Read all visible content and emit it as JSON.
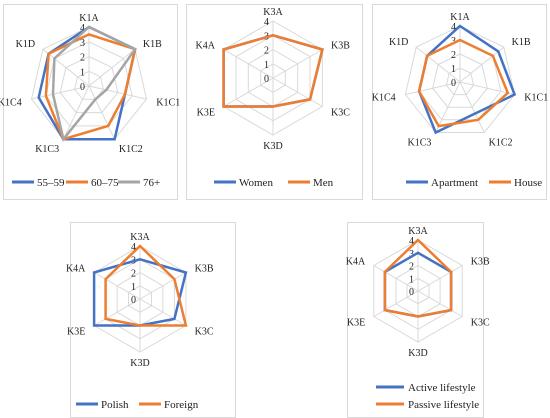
{
  "colors": {
    "blue": "#4472c4",
    "orange": "#ed7d31",
    "gray": "#a5a5a5",
    "grid": "#d9d9d9",
    "text": "#222222"
  },
  "chart_data": [
    {
      "type": "radar",
      "axes": [
        "K1A",
        "K1B",
        "K1C1",
        "K1C2",
        "K1C3",
        "K1C4",
        "K1D"
      ],
      "ticks": [
        "0",
        "1",
        "2",
        "3",
        "4"
      ],
      "rmax": 4,
      "series": [
        {
          "name": "55–59",
          "color": "blue",
          "values": [
            4,
            4,
            2.5,
            4,
            4,
            3.5,
            3.5
          ]
        },
        {
          "name": "60–75",
          "color": "orange",
          "values": [
            3.5,
            4,
            2.5,
            3,
            4,
            3,
            3.5
          ]
        },
        {
          "name": "76+",
          "color": "gray",
          "values": [
            4,
            4,
            1.2,
            1,
            4,
            2.5,
            3
          ]
        }
      ],
      "legend": "bottom"
    },
    {
      "type": "radar",
      "axes": [
        "K3A",
        "K3B",
        "K3C",
        "K3D",
        "K3E",
        "K4A"
      ],
      "ticks": [
        "0",
        "1",
        "2",
        "3",
        "4"
      ],
      "rmax": 4,
      "series": [
        {
          "name": "Women",
          "color": "blue",
          "values": [
            3,
            4,
            3,
            2,
            4,
            4
          ]
        },
        {
          "name": "Men",
          "color": "orange",
          "values": [
            3,
            4,
            3,
            2,
            4,
            4
          ]
        }
      ],
      "legend": "bottom"
    },
    {
      "type": "radar",
      "axes": [
        "K1A",
        "K1B",
        "K1C1",
        "K1C2",
        "K1C3",
        "K1C4",
        "K1D"
      ],
      "ticks": [
        "0",
        "1",
        "2",
        "3",
        "4"
      ],
      "rmax": 4,
      "series": [
        {
          "name": "Apartment",
          "color": "blue",
          "values": [
            4,
            3.5,
            4,
            2.5,
            4,
            3,
            3
          ]
        },
        {
          "name": "House",
          "color": "orange",
          "values": [
            3,
            3,
            3.5,
            3,
            3.5,
            3,
            3
          ]
        }
      ],
      "legend": "bottom"
    },
    {
      "type": "radar",
      "axes": [
        "K3A",
        "K3B",
        "K3C",
        "K3D",
        "K3E",
        "K4A"
      ],
      "ticks": [
        "0",
        "1",
        "2",
        "3",
        "4"
      ],
      "rmax": 4,
      "series": [
        {
          "name": "Polish",
          "color": "blue",
          "values": [
            3,
            4,
            3,
            2,
            4,
            4
          ]
        },
        {
          "name": "Foreign",
          "color": "orange",
          "values": [
            4,
            3,
            4,
            2,
            3,
            3
          ]
        }
      ],
      "legend": "bottom"
    },
    {
      "type": "radar",
      "axes": [
        "K3A",
        "K3B",
        "K3C",
        "K3D",
        "K3E",
        "K4A"
      ],
      "ticks": [
        "0",
        "1",
        "2",
        "3",
        "4"
      ],
      "rmax": 4,
      "series": [
        {
          "name": "Active lifestyle",
          "color": "blue",
          "values": [
            3,
            3,
            3,
            2,
            3,
            3
          ]
        },
        {
          "name": "Passive lifestyle",
          "color": "orange",
          "values": [
            4,
            3,
            3,
            2,
            3,
            3
          ]
        }
      ],
      "legend": "bottom-stacked"
    }
  ]
}
